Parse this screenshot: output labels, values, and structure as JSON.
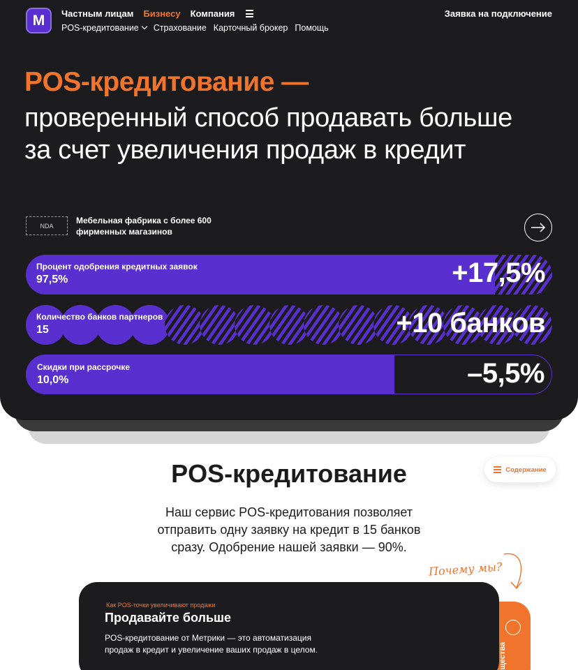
{
  "brand": {
    "logo_letter": "M",
    "accent": "#f0742b",
    "purple": "#5a2fd0",
    "dark": "#1c1b1d"
  },
  "nav": {
    "top": [
      "Частным лицам",
      "Бизнесу",
      "Компания"
    ],
    "active_index": 1,
    "menu_icon": "burger-icon",
    "sub": [
      "POS-кредитование",
      "Страхование",
      "Карточный брокер",
      "Помощь"
    ],
    "cta": "Заявка на подключение"
  },
  "hero": {
    "title_accent": "POS-кредитование —",
    "title_rest": "проверенный способ продавать больше за счет увеличения продаж в кредит",
    "nda_badge": "NDA",
    "client": "Мебельная фабрика с более 600 фирменных магазинов",
    "next_icon": "arrow-right-icon"
  },
  "metrics": [
    {
      "label": "Процент одобрения кредитных заявок",
      "value": "97,5%",
      "delta": "+17,5%"
    },
    {
      "label": "Количество банков партнеров",
      "value": "15",
      "delta": "+10 банков",
      "solid_count": 4,
      "striped_count": 11
    },
    {
      "label": "Скидки при рассрочке",
      "value": "10,0%",
      "delta": "–5,5%"
    }
  ],
  "section": {
    "title": "POS-кредитование",
    "contents_button": "Содержание",
    "lead": "Наш сервис POS-кредитования позволяет отправить одну заявку на кредит в 15 банков сразу. Одобрение нашей заявки — 90%.",
    "why": "Почему мы?"
  },
  "card": {
    "kicker": "Как POS-точки увеличивают продажи",
    "title": "Продавайте больше",
    "text": "POS-кредитование от Метрики — это автоматизация продаж в кредит и увеличение ваших продаж в целом.",
    "side_tab": "ущества"
  }
}
